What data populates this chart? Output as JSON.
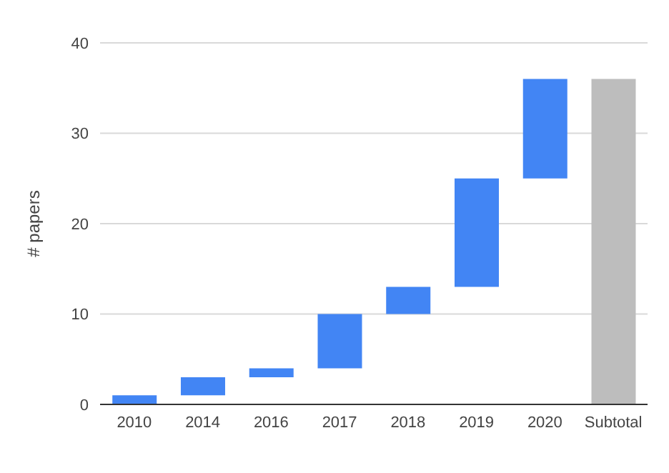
{
  "chart_data": {
    "type": "bar",
    "ylabel": "# papers",
    "categories": [
      "2010",
      "2014",
      "2016",
      "2017",
      "2018",
      "2019",
      "2020",
      "Subtotal"
    ],
    "values": [
      1,
      2,
      1,
      6,
      3,
      12,
      11,
      36
    ],
    "base": [
      0,
      1,
      3,
      4,
      10,
      13,
      25,
      0
    ],
    "colors": [
      "#4285f4",
      "#4285f4",
      "#4285f4",
      "#4285f4",
      "#4285f4",
      "#4285f4",
      "#4285f4",
      "#bdbdbd"
    ],
    "ylim": [
      0,
      40
    ],
    "yticks": [
      0,
      10,
      20,
      30,
      40
    ],
    "grid": "y"
  }
}
